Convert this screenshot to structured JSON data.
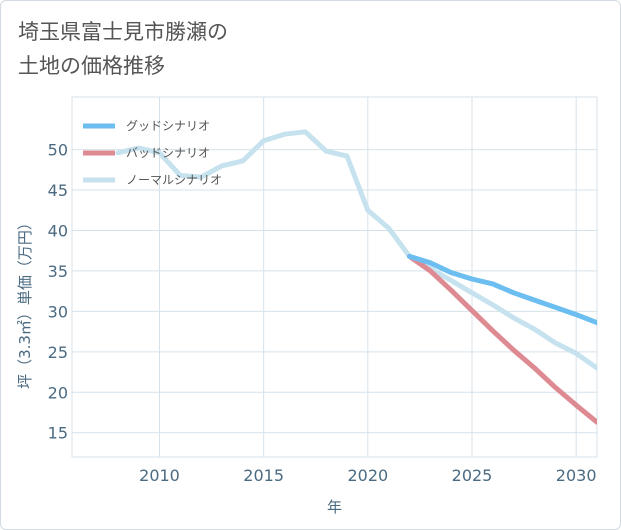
{
  "title_lines": [
    "埼玉県富士見市勝瀬の",
    "土地の価格推移"
  ],
  "colors": {
    "good": "#6cbef0",
    "bad": "#de8a92",
    "normal": "#c6e2ee",
    "grid": "#d6e2ea",
    "axis_text": "#4a6a82"
  },
  "chart_data": {
    "type": "line",
    "xlabel": "年",
    "ylabel": "坪（3.3㎡）単価（万円）",
    "xlim": [
      2005.8,
      2031
    ],
    "ylim": [
      12,
      56.5
    ],
    "xticks": [
      2010,
      2015,
      2020,
      2025,
      2030
    ],
    "yticks": [
      15,
      20,
      25,
      30,
      35,
      40,
      45,
      50
    ],
    "grid": true,
    "legend_position": "top-left",
    "series": [
      {
        "name": "グッドシナリオ",
        "color": "#6cbef0",
        "points": [
          [
            2022,
            36.8
          ],
          [
            2023,
            36.0
          ],
          [
            2024,
            34.8
          ],
          [
            2025,
            34.0
          ],
          [
            2026,
            33.4
          ],
          [
            2027,
            32.3
          ],
          [
            2028,
            31.4
          ],
          [
            2029,
            30.5
          ],
          [
            2030,
            29.6
          ],
          [
            2031,
            28.6
          ]
        ]
      },
      {
        "name": "バッドシナリオ",
        "color": "#de8a92",
        "points": [
          [
            2022,
            36.8
          ],
          [
            2023,
            35.0
          ],
          [
            2024,
            32.6
          ],
          [
            2025,
            30.1
          ],
          [
            2026,
            27.6
          ],
          [
            2027,
            25.2
          ],
          [
            2028,
            23.0
          ],
          [
            2029,
            20.6
          ],
          [
            2030,
            18.4
          ],
          [
            2031,
            16.3
          ]
        ]
      },
      {
        "name": "ノーマルシナリオ",
        "color": "#c6e2ee",
        "points": [
          [
            2008,
            49.6
          ],
          [
            2009,
            50.2
          ],
          [
            2010,
            49.6
          ],
          [
            2011,
            46.8
          ],
          [
            2012,
            46.6
          ],
          [
            2013,
            48.0
          ],
          [
            2014,
            48.6
          ],
          [
            2015,
            51.1
          ],
          [
            2016,
            51.9
          ],
          [
            2017,
            52.2
          ],
          [
            2018,
            49.8
          ],
          [
            2019,
            49.2
          ],
          [
            2020,
            42.5
          ],
          [
            2021,
            40.3
          ],
          [
            2022,
            36.8
          ],
          [
            2023,
            35.3
          ],
          [
            2024,
            33.8
          ],
          [
            2025,
            32.3
          ],
          [
            2026,
            30.8
          ],
          [
            2027,
            29.2
          ],
          [
            2028,
            27.8
          ],
          [
            2029,
            26.1
          ],
          [
            2030,
            24.8
          ],
          [
            2031,
            23.0
          ]
        ]
      }
    ]
  }
}
